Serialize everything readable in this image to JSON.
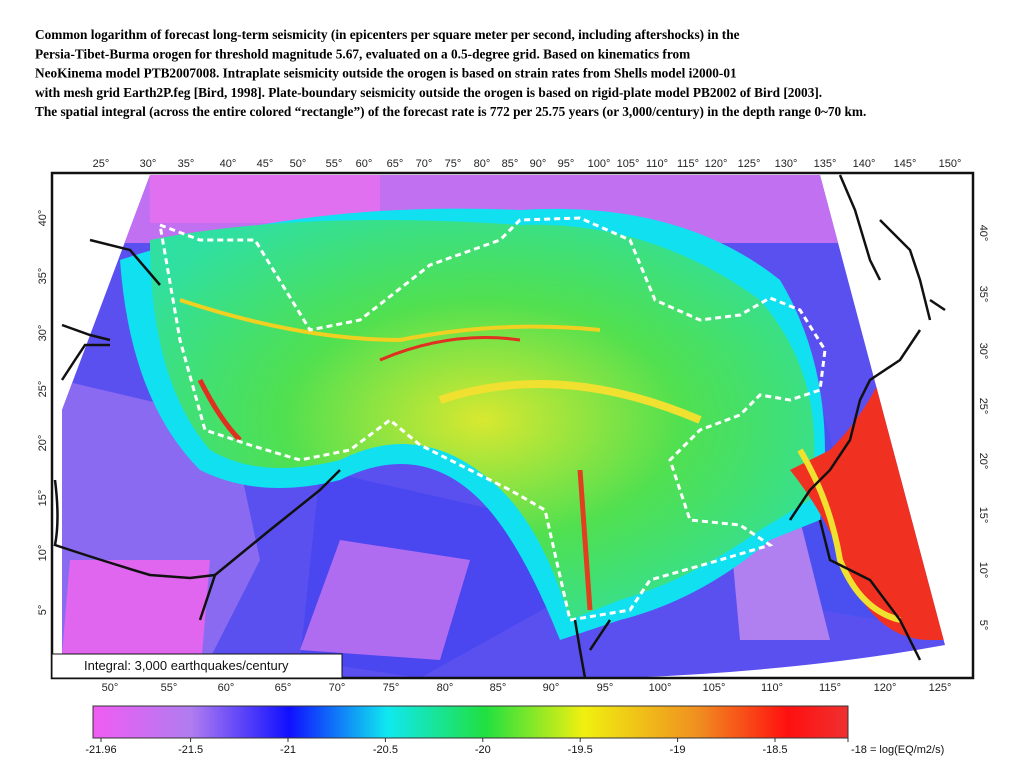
{
  "caption": [
    "Common logarithm of forecast long-term seismicity (in epicenters per square meter per second, including aftershocks) in the",
    "Persia-Tibet-Burma orogen for threshold magnitude 5.67, evaluated on a 0.5-degree grid. Based on kinematics from",
    "NeoKinema model PTB2007008.  Intraplate seismicity outside the orogen is based on strain rates from Shells model i2000-01",
    "with mesh grid Earth2P.feg [Bird, 1998]. Plate-boundary seismicity outside the orogen is based on rigid-plate model PB2002 of Bird [2003].",
    "The spatial integral (across the entire colored “rectangle”) of the forecast rate is 772 per 25.75 years (or 3,000/century) in the depth range 0~70 km."
  ],
  "map": {
    "top_longitudes": [
      "25°",
      "30°",
      "35°",
      "40°",
      "45°",
      "50°",
      "55°",
      "60°",
      "65°",
      "70°",
      "75°",
      "80°",
      "85°",
      "90°",
      "95°",
      "100°",
      "105°",
      "110°",
      "115°",
      "120°",
      "125°",
      "130°",
      "135°",
      "140°",
      "145°",
      "150°"
    ],
    "bottom_longitudes": [
      "50°",
      "55°",
      "60°",
      "65°",
      "70°",
      "75°",
      "80°",
      "85°",
      "90°",
      "95°",
      "100°",
      "105°",
      "110°",
      "115°",
      "120°",
      "125°"
    ],
    "left_latitudes": [
      "40°",
      "35°",
      "30°",
      "25°",
      "20°",
      "15°",
      "10°",
      "5°"
    ],
    "right_latitudes": [
      "40°",
      "35°",
      "30°",
      "25°",
      "20°",
      "15°",
      "10°",
      "5°"
    ],
    "integral_label": "Integral:  3,000 earthquakes/century"
  },
  "colorbar": {
    "ticks": [
      -21.96,
      -21.5,
      -21,
      -20.5,
      -20,
      -19.5,
      -19,
      -18.5,
      {
        "value": -18,
        "label": "-18 = log(EQ/m2/s)"
      }
    ]
  }
}
